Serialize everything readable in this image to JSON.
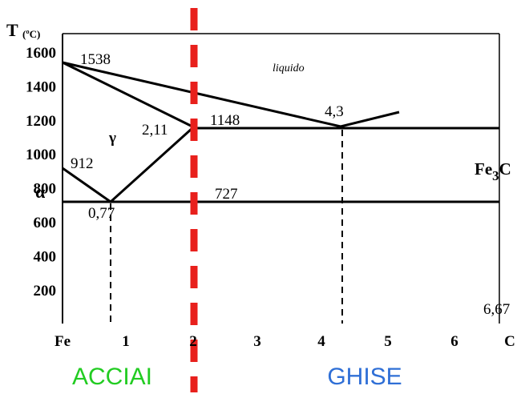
{
  "axis": {
    "title": "T",
    "unit": "(ºC)",
    "y_labels": [
      "1600",
      "1400",
      "1200",
      "1000",
      "800",
      "600",
      "400",
      "200"
    ],
    "x_labels": [
      "Fe",
      "1",
      "2",
      "3",
      "4",
      "5",
      "6",
      "C"
    ]
  },
  "annotations": {
    "t1538": "1538",
    "liquido": "liquido",
    "c43": "4,3",
    "t1148": "1148",
    "c211": "2,11",
    "gamma": "γ",
    "t912": "912",
    "fe3c": {
      "base": "Fe",
      "sub": "3",
      "end": "C"
    },
    "alpha": "α",
    "t727": "727",
    "c077": "0,77",
    "c667": "6,67"
  },
  "regions": {
    "steel": "ACCIAI",
    "cast_iron": "GHISE"
  }
}
